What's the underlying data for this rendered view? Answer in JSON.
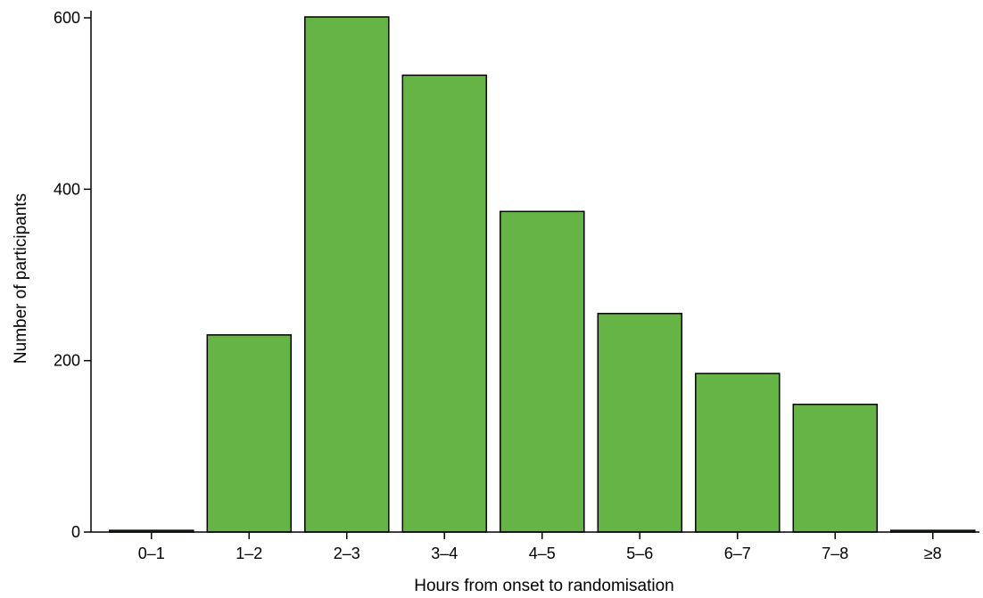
{
  "chart_data": {
    "type": "bar",
    "title": "",
    "xlabel": "Hours from onset to randomisation",
    "ylabel": "Number of participants",
    "categories": [
      "0–1",
      "1–2",
      "2–3",
      "3–4",
      "4–5",
      "5–6",
      "6–7",
      "7–8",
      "≥8"
    ],
    "values": [
      2,
      230,
      601,
      533,
      374,
      255,
      185,
      149,
      2
    ],
    "ylim": [
      0,
      600
    ],
    "yticks": [
      0,
      200,
      400,
      600
    ],
    "ytick_labels": [
      "0",
      "200",
      "400",
      "600"
    ],
    "grid": false,
    "legend": "none",
    "colors": {
      "bar_fill": "#66b445",
      "bar_stroke": "#000000",
      "axis": "#000000"
    }
  }
}
